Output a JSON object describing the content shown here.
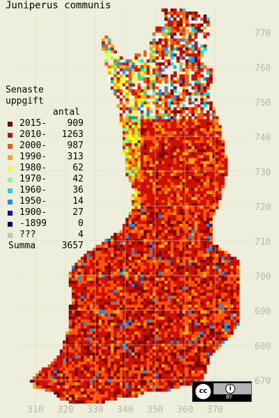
{
  "title": "Juniperus communis",
  "legend": {
    "heading_line1": "Senaste",
    "heading_line2": "uppgift",
    "count_header": "antal",
    "items": [
      {
        "label": "2015-",
        "count": "909",
        "color": "#800000"
      },
      {
        "label": "2010-",
        "count": "1263",
        "color": "#cc1100"
      },
      {
        "label": "2000-",
        "count": "987",
        "color": "#ff5500"
      },
      {
        "label": "1990-",
        "count": "313",
        "color": "#ffa500"
      },
      {
        "label": "1980-",
        "count": "62",
        "color": "#ffff00"
      },
      {
        "label": "1970-",
        "count": "42",
        "color": "#7fff7f"
      },
      {
        "label": "1960-",
        "count": "36",
        "color": "#00e0e0"
      },
      {
        "label": "1950-",
        "count": "14",
        "color": "#0099ff"
      },
      {
        "label": "1900-",
        "count": "27",
        "color": "#0000ff"
      },
      {
        "label": "-1899",
        "count": "0",
        "color": "#000080"
      },
      {
        "label": "???",
        "count": "4",
        "color": "#c0c0c0"
      }
    ],
    "summa_label": "Summa",
    "summa_count": "3657"
  },
  "y_ticks": [
    "770",
    "760",
    "750",
    "740",
    "730",
    "720",
    "710",
    "700",
    "690",
    "680",
    "670"
  ],
  "x_ticks": [
    "310",
    "320",
    "330",
    "340",
    "350",
    "360",
    "370"
  ],
  "license": {
    "cc_text": "cc",
    "by_text": "BY",
    "by_icon": "person-icon"
  }
}
